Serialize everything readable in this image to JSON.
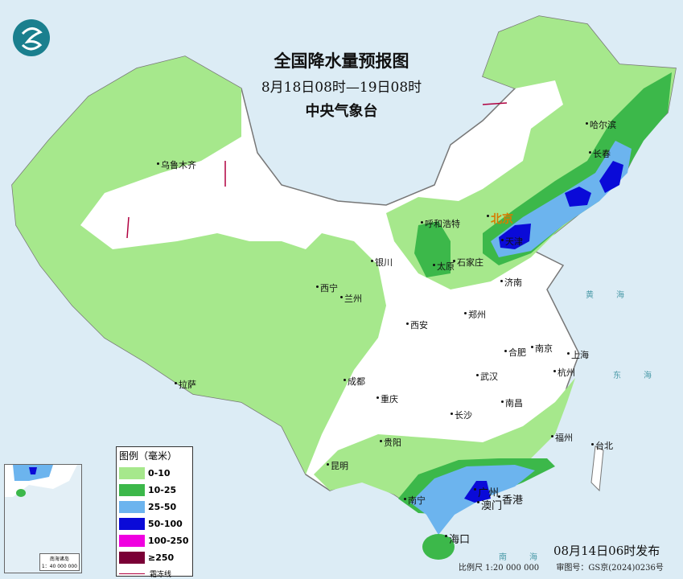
{
  "header": {
    "title": "全国降水量预报图",
    "period": "8月18日08时—19日08时",
    "issuer": "中央气象台"
  },
  "legend": {
    "title": "图例（毫米）",
    "items": [
      {
        "label": "0-10",
        "color": "#a6e88c"
      },
      {
        "label": "10-25",
        "color": "#3cb84a"
      },
      {
        "label": "25-50",
        "color": "#6cb4ee"
      },
      {
        "label": "50-100",
        "color": "#0a0ad8"
      },
      {
        "label": "100-250",
        "color": "#f000e0"
      },
      {
        "label": "≥250",
        "color": "#7a0036"
      }
    ],
    "frost_line_label": "霜冻线"
  },
  "cities": [
    "乌鲁木齐",
    "哈尔滨",
    "长春",
    "北京",
    "天津",
    "呼和浩特",
    "石家庄",
    "太原",
    "银川",
    "西宁",
    "兰州",
    "济南",
    "郑州",
    "西安",
    "合肥",
    "南京",
    "上海",
    "杭州",
    "武汉",
    "成都",
    "重庆",
    "拉萨",
    "长沙",
    "南昌",
    "福州",
    "台北",
    "贵阳",
    "昆明",
    "南宁",
    "广州",
    "澳门",
    "香港",
    "海口"
  ],
  "seas": {
    "yellow_sea": "黄海",
    "east_sea": "东海",
    "south_sea": "南海"
  },
  "inset": {
    "title": "南海诸岛",
    "scale": "1：40 000 000"
  },
  "footer": {
    "published": "08月14日06时发布",
    "scale": "比例尺 1:20 000 000",
    "map_approval": "审图号：GS京(2024)0236号"
  },
  "colors": {
    "sea": "#dcecf5",
    "land": "#ffffff",
    "border": "#888888",
    "capital": "#d87a00"
  }
}
